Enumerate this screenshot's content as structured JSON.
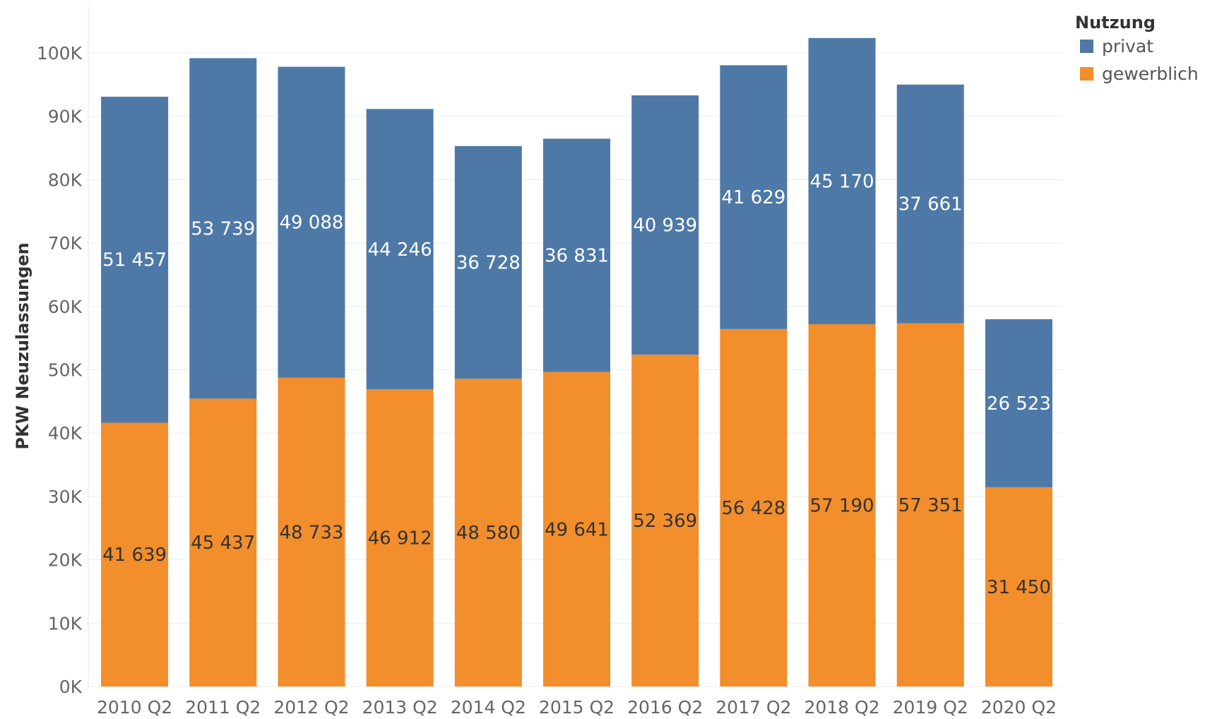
{
  "chart_data": {
    "type": "bar",
    "stacked": true,
    "categories": [
      "2010 Q2",
      "2011 Q2",
      "2012 Q2",
      "2013 Q2",
      "2014 Q2",
      "2015 Q2",
      "2016 Q2",
      "2017 Q2",
      "2018 Q2",
      "2019 Q2",
      "2020 Q2"
    ],
    "series": [
      {
        "name": "gewerblich",
        "color": "#F28E2B",
        "label_color": "#333333",
        "values": [
          41639,
          45437,
          48733,
          46912,
          48580,
          49641,
          52369,
          56428,
          57190,
          57351,
          31450
        ],
        "labels": [
          "41 639",
          "45 437",
          "48 733",
          "46 912",
          "48 580",
          "49 641",
          "52 369",
          "56 428",
          "57 190",
          "57 351",
          "31 450"
        ]
      },
      {
        "name": "privat",
        "color": "#4E79A7",
        "label_color": "#ffffff",
        "values": [
          51457,
          53739,
          49088,
          44246,
          36728,
          36831,
          40939,
          41629,
          45170,
          37661,
          26523
        ],
        "labels": [
          "51 457",
          "53 739",
          "49 088",
          "44 246",
          "36 728",
          "36 831",
          "40 939",
          "41 629",
          "45 170",
          "37 661",
          "26 523"
        ]
      }
    ],
    "ylabel": "PKW Neuzulassungen",
    "xlabel": "",
    "yticks": [
      0,
      10000,
      20000,
      30000,
      40000,
      50000,
      60000,
      70000,
      80000,
      90000,
      100000
    ],
    "ytick_labels": [
      "0K",
      "10K",
      "20K",
      "30K",
      "40K",
      "50K",
      "60K",
      "70K",
      "80K",
      "90K",
      "100K"
    ],
    "ylim": [
      0,
      105000
    ],
    "grid": true,
    "legend": {
      "title": "Nutzung",
      "placement": "top-right",
      "entries": [
        {
          "name": "privat",
          "color": "#4E79A7"
        },
        {
          "name": "gewerblich",
          "color": "#F28E2B"
        }
      ]
    }
  }
}
